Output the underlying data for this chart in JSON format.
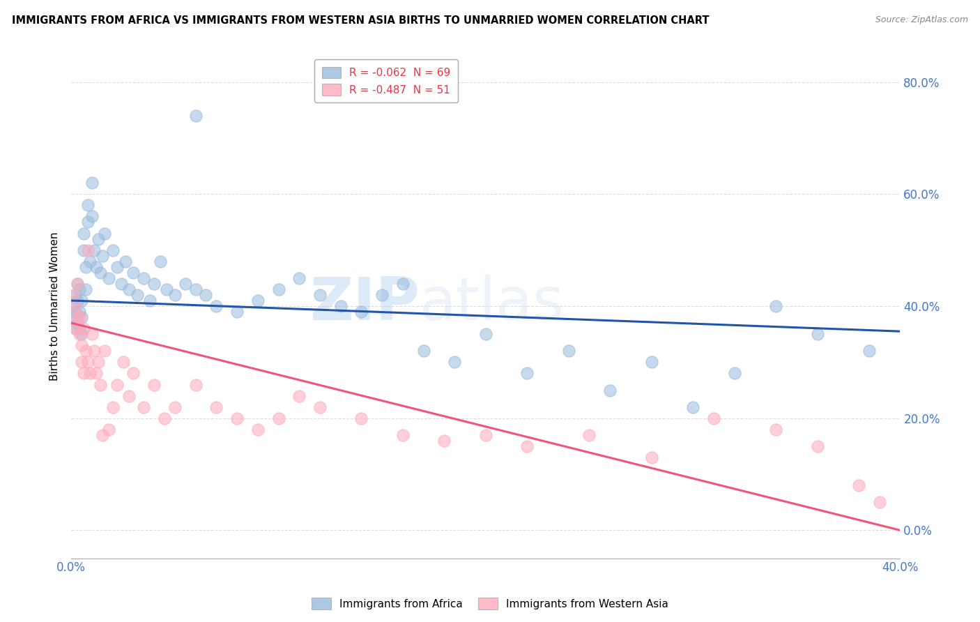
{
  "title": "IMMIGRANTS FROM AFRICA VS IMMIGRANTS FROM WESTERN ASIA BIRTHS TO UNMARRIED WOMEN CORRELATION CHART",
  "source": "Source: ZipAtlas.com",
  "ylabel": "Births to Unmarried Women",
  "xlabel": "",
  "legend_labels": [
    "Immigrants from Africa",
    "Immigrants from Western Asia"
  ],
  "legend_r": [
    "R = -0.062",
    "R = -0.487"
  ],
  "legend_n": [
    "N = 69",
    "N = 51"
  ],
  "blue_color": "#99BBDD",
  "pink_color": "#FFAABB",
  "blue_line_color": "#2255AA",
  "pink_line_color": "#EE5577",
  "xlim": [
    0.0,
    0.4
  ],
  "ylim": [
    -0.05,
    0.85
  ],
  "xticks_show": [
    0.0,
    0.4
  ],
  "yticks": [
    0.0,
    0.2,
    0.4,
    0.6,
    0.8
  ],
  "blue_x": [
    0.001,
    0.001,
    0.002,
    0.002,
    0.002,
    0.003,
    0.003,
    0.003,
    0.004,
    0.004,
    0.004,
    0.005,
    0.005,
    0.005,
    0.006,
    0.006,
    0.007,
    0.007,
    0.008,
    0.008,
    0.009,
    0.01,
    0.01,
    0.011,
    0.012,
    0.013,
    0.014,
    0.015,
    0.016,
    0.018,
    0.02,
    0.022,
    0.024,
    0.026,
    0.028,
    0.03,
    0.032,
    0.035,
    0.038,
    0.04,
    0.043,
    0.046,
    0.05,
    0.055,
    0.06,
    0.065,
    0.07,
    0.08,
    0.09,
    0.1,
    0.11,
    0.12,
    0.13,
    0.14,
    0.15,
    0.16,
    0.17,
    0.185,
    0.2,
    0.22,
    0.24,
    0.26,
    0.28,
    0.3,
    0.32,
    0.34,
    0.36,
    0.385,
    0.06
  ],
  "blue_y": [
    0.38,
    0.4,
    0.36,
    0.39,
    0.42,
    0.37,
    0.41,
    0.44,
    0.36,
    0.39,
    0.43,
    0.35,
    0.38,
    0.41,
    0.5,
    0.53,
    0.47,
    0.43,
    0.55,
    0.58,
    0.48,
    0.56,
    0.62,
    0.5,
    0.47,
    0.52,
    0.46,
    0.49,
    0.53,
    0.45,
    0.5,
    0.47,
    0.44,
    0.48,
    0.43,
    0.46,
    0.42,
    0.45,
    0.41,
    0.44,
    0.48,
    0.43,
    0.42,
    0.44,
    0.43,
    0.42,
    0.4,
    0.39,
    0.41,
    0.43,
    0.45,
    0.42,
    0.4,
    0.39,
    0.42,
    0.44,
    0.32,
    0.3,
    0.35,
    0.28,
    0.32,
    0.25,
    0.3,
    0.22,
    0.28,
    0.4,
    0.35,
    0.32,
    0.74
  ],
  "pink_x": [
    0.001,
    0.002,
    0.002,
    0.003,
    0.003,
    0.004,
    0.004,
    0.005,
    0.005,
    0.006,
    0.006,
    0.007,
    0.008,
    0.009,
    0.01,
    0.011,
    0.012,
    0.013,
    0.014,
    0.015,
    0.016,
    0.018,
    0.02,
    0.022,
    0.025,
    0.028,
    0.03,
    0.035,
    0.04,
    0.045,
    0.05,
    0.06,
    0.07,
    0.08,
    0.09,
    0.1,
    0.11,
    0.12,
    0.14,
    0.16,
    0.18,
    0.2,
    0.22,
    0.25,
    0.28,
    0.31,
    0.34,
    0.36,
    0.38,
    0.39,
    0.008
  ],
  "pink_y": [
    0.42,
    0.36,
    0.4,
    0.38,
    0.44,
    0.35,
    0.38,
    0.3,
    0.33,
    0.28,
    0.36,
    0.32,
    0.3,
    0.28,
    0.35,
    0.32,
    0.28,
    0.3,
    0.26,
    0.17,
    0.32,
    0.18,
    0.22,
    0.26,
    0.3,
    0.24,
    0.28,
    0.22,
    0.26,
    0.2,
    0.22,
    0.26,
    0.22,
    0.2,
    0.18,
    0.2,
    0.24,
    0.22,
    0.2,
    0.17,
    0.16,
    0.17,
    0.15,
    0.17,
    0.13,
    0.2,
    0.18,
    0.15,
    0.08,
    0.05,
    0.5
  ],
  "blue_trend_x0": 0.0,
  "blue_trend_y0": 0.41,
  "blue_trend_x1": 0.4,
  "blue_trend_y1": 0.355,
  "pink_trend_x0": 0.0,
  "pink_trend_y0": 0.37,
  "pink_trend_x1": 0.4,
  "pink_trend_y1": 0.0,
  "watermark_zip": "ZIP",
  "watermark_atlas": "atlas",
  "background_color": "#FFFFFF",
  "grid_color": "#DDDDDD"
}
